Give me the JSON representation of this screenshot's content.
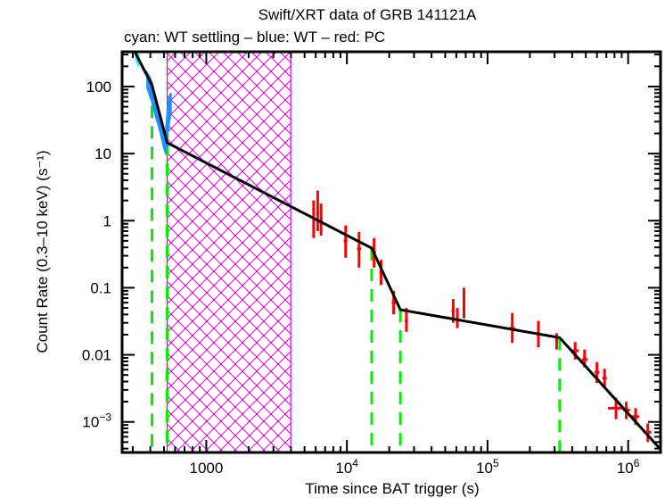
{
  "chart_data": {
    "type": "scatter",
    "title": "Swift/XRT data of GRB 141121A",
    "subtitle": "cyan: WT settling – blue: WT – red: PC",
    "xlabel": "Time since BAT trigger (s)",
    "ylabel": "Count Rate (0.3–10 keV) (s⁻¹)",
    "xscale": "log",
    "yscale": "log",
    "xlim": [
      252,
      1700000
    ],
    "ylim": [
      0.00035,
      330
    ],
    "x_ticks": [
      {
        "value": 1000,
        "label": "1000"
      },
      {
        "value": 10000,
        "label": "10^4"
      },
      {
        "value": 100000,
        "label": "10^5"
      },
      {
        "value": 1000000,
        "label": "10^6"
      }
    ],
    "y_ticks": [
      {
        "value": 100,
        "label": "100"
      },
      {
        "value": 10,
        "label": "10"
      },
      {
        "value": 1,
        "label": "1"
      },
      {
        "value": 0.1,
        "label": "0.1"
      },
      {
        "value": 0.01,
        "label": "0.01"
      },
      {
        "value": 0.001,
        "label": "10^-3"
      }
    ],
    "colors": {
      "wt_settling": "#00ffff",
      "wt": "#1e90ff",
      "pc": "#ff0000",
      "fit": "#000000",
      "breaks": "#00ee00",
      "gap": "#dd00dd"
    },
    "series": [
      {
        "name": "WT settling",
        "color": "#00ffff",
        "band": [
          {
            "x": 318,
            "lo": 250,
            "hi": 330
          },
          {
            "x": 330,
            "lo": 200,
            "hi": 300
          }
        ]
      },
      {
        "name": "WT",
        "color": "#1e90ff",
        "band": [
          {
            "x": 380,
            "lo": 95,
            "hi": 160
          },
          {
            "x": 395,
            "lo": 75,
            "hi": 140
          },
          {
            "x": 410,
            "lo": 60,
            "hi": 115
          },
          {
            "x": 425,
            "lo": 45,
            "hi": 80
          },
          {
            "x": 440,
            "lo": 34,
            "hi": 62
          },
          {
            "x": 455,
            "lo": 27,
            "hi": 48
          },
          {
            "x": 470,
            "lo": 21,
            "hi": 38
          },
          {
            "x": 485,
            "lo": 16,
            "hi": 29
          },
          {
            "x": 500,
            "lo": 12,
            "hi": 22
          },
          {
            "x": 512,
            "lo": 10.5,
            "hi": 18
          },
          {
            "x": 522,
            "lo": 12,
            "hi": 30
          },
          {
            "x": 532,
            "lo": 20,
            "hi": 48
          },
          {
            "x": 545,
            "lo": 30,
            "hi": 70
          },
          {
            "x": 560,
            "lo": 40,
            "hi": 80
          }
        ]
      },
      {
        "name": "PC",
        "color": "#ff0000",
        "points": [
          {
            "x": 5800,
            "y": 1.1,
            "ylo": 0.55,
            "yhi": 2.0,
            "xlo": 5650,
            "xhi": 5950
          },
          {
            "x": 6200,
            "y": 1.3,
            "ylo": 0.7,
            "yhi": 2.8,
            "xlo": 6050,
            "xhi": 6350
          },
          {
            "x": 6550,
            "y": 1.0,
            "ylo": 0.6,
            "yhi": 1.8,
            "xlo": 6400,
            "xhi": 6700
          },
          {
            "x": 9800,
            "y": 0.5,
            "ylo": 0.28,
            "yhi": 0.85,
            "xlo": 9500,
            "xhi": 10100
          },
          {
            "x": 12200,
            "y": 0.38,
            "ylo": 0.2,
            "yhi": 0.68,
            "xlo": 11800,
            "xhi": 12600
          },
          {
            "x": 15600,
            "y": 0.34,
            "ylo": 0.2,
            "yhi": 0.55,
            "xlo": 15100,
            "xhi": 16100
          },
          {
            "x": 17500,
            "y": 0.17,
            "ylo": 0.11,
            "yhi": 0.26,
            "xlo": 17000,
            "xhi": 18000
          },
          {
            "x": 21500,
            "y": 0.06,
            "ylo": 0.04,
            "yhi": 0.09,
            "xlo": 20800,
            "xhi": 22200
          },
          {
            "x": 26500,
            "y": 0.032,
            "ylo": 0.022,
            "yhi": 0.05,
            "xlo": 25800,
            "xhi": 27200
          },
          {
            "x": 57000,
            "y": 0.045,
            "ylo": 0.03,
            "yhi": 0.068,
            "xlo": 55500,
            "xhi": 58500
          },
          {
            "x": 61000,
            "y": 0.035,
            "ylo": 0.025,
            "yhi": 0.05,
            "xlo": 59500,
            "xhi": 62500
          },
          {
            "x": 68000,
            "y": 0.055,
            "ylo": 0.035,
            "yhi": 0.1,
            "xlo": 66500,
            "xhi": 69500
          },
          {
            "x": 150000,
            "y": 0.025,
            "ylo": 0.015,
            "yhi": 0.042,
            "xlo": 144000,
            "xhi": 156000
          },
          {
            "x": 230000,
            "y": 0.02,
            "ylo": 0.013,
            "yhi": 0.032,
            "xlo": 224000,
            "xhi": 236000
          },
          {
            "x": 310000,
            "y": 0.016,
            "ylo": 0.012,
            "yhi": 0.021,
            "xlo": 303000,
            "xhi": 317000
          },
          {
            "x": 420000,
            "y": 0.0115,
            "ylo": 0.0085,
            "yhi": 0.0155,
            "xlo": 395000,
            "xhi": 445000
          },
          {
            "x": 490000,
            "y": 0.0085,
            "ylo": 0.0065,
            "yhi": 0.012,
            "xlo": 470000,
            "xhi": 515000
          },
          {
            "x": 600000,
            "y": 0.0055,
            "ylo": 0.0038,
            "yhi": 0.0078,
            "xlo": 575000,
            "xhi": 625000
          },
          {
            "x": 680000,
            "y": 0.0045,
            "ylo": 0.0033,
            "yhi": 0.0062,
            "xlo": 655000,
            "xhi": 705000
          },
          {
            "x": 820000,
            "y": 0.0016,
            "ylo": 0.0011,
            "yhi": 0.0023,
            "xlo": 720000,
            "xhi": 920000
          },
          {
            "x": 970000,
            "y": 0.0015,
            "ylo": 0.0011,
            "yhi": 0.002,
            "xlo": 920000,
            "xhi": 1030000
          },
          {
            "x": 1130000,
            "y": 0.0012,
            "ylo": 0.0009,
            "yhi": 0.0016,
            "xlo": 1060000,
            "xhi": 1200000
          },
          {
            "x": 1380000,
            "y": 0.0007,
            "ylo": 0.0005,
            "yhi": 0.00095,
            "xlo": 1300000,
            "xhi": 1460000
          }
        ]
      }
    ],
    "fit": {
      "name": "broken power-law model",
      "color": "#000000",
      "points": [
        {
          "x": 310,
          "y": 330
        },
        {
          "x": 411,
          "y": 105
        },
        {
          "x": 527,
          "y": 14.5
        },
        {
          "x": 15000,
          "y": 0.39
        },
        {
          "x": 24000,
          "y": 0.047
        },
        {
          "x": 326000,
          "y": 0.018
        },
        {
          "x": 1700000,
          "y": 0.00039
        }
      ]
    },
    "breaks": [
      411,
      527,
      15000,
      24000,
      326000
    ],
    "gap_region": {
      "x0": 527,
      "x1": 3990,
      "label": "data gap (hatched)"
    }
  }
}
